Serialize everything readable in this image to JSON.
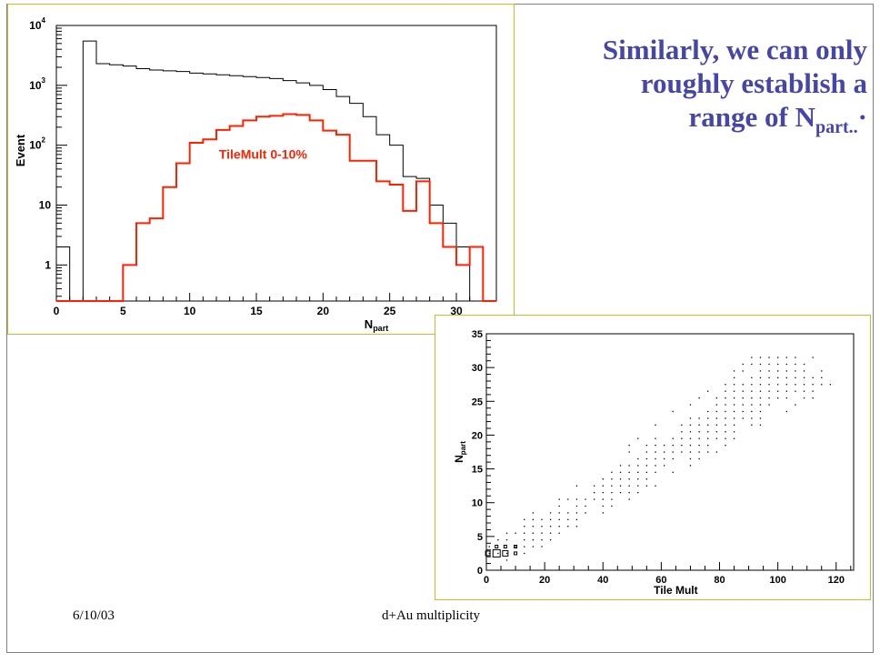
{
  "slide": {
    "headline_parts": [
      "Similarly, we can only",
      "roughly establish a",
      "range of N",
      "part..",
      "·"
    ],
    "footer_date": "6/10/03",
    "footer_title": "d+Au multiplicity"
  },
  "chart_data": [
    {
      "type": "histogram",
      "xlabel": "N",
      "xlabel_sub": "part",
      "ylabel": "Event",
      "xlim": [
        0,
        33
      ],
      "ylim": [
        0.25,
        10000
      ],
      "yscale": "log",
      "x_ticks": [
        0,
        5,
        10,
        15,
        20,
        25,
        30
      ],
      "y_ticks": [
        {
          "value": 1,
          "base": "1",
          "exp": ""
        },
        {
          "value": 10,
          "base": "10",
          "exp": ""
        },
        {
          "value": 100,
          "base": "10",
          "exp": "2"
        },
        {
          "value": 1000,
          "base": "10",
          "exp": "3"
        },
        {
          "value": 10000,
          "base": "10",
          "exp": "4"
        }
      ],
      "bin_width": 1,
      "series": [
        {
          "color": "#000000",
          "x_start": 0,
          "values": [
            2,
            0,
            5500,
            2300,
            2200,
            2100,
            1900,
            1800,
            1750,
            1700,
            1600,
            1550,
            1500,
            1450,
            1400,
            1350,
            1300,
            1200,
            1100,
            1000,
            850,
            650,
            500,
            300,
            150,
            100,
            30,
            28,
            10,
            5,
            2,
            0,
            0
          ]
        },
        {
          "color": "#ff2200",
          "x_start": 0,
          "values": [
            0,
            0,
            0,
            0,
            0,
            1,
            5,
            6,
            20,
            50,
            110,
            125,
            180,
            210,
            260,
            300,
            310,
            330,
            320,
            260,
            175,
            150,
            55,
            55,
            25,
            22,
            8,
            25,
            5,
            2,
            1,
            2,
            0
          ]
        }
      ],
      "annotation": {
        "text": "TileMult 0-10%",
        "color": "#ff2200",
        "x": 15.5,
        "y": 60
      }
    },
    {
      "type": "scatter",
      "xlabel": "Tile Mult",
      "ylabel": "N",
      "ylabel_sub": "part",
      "xlim": [
        0,
        126
      ],
      "ylim": [
        0,
        35
      ],
      "x_ticks": [
        0,
        20,
        40,
        60,
        80,
        100,
        120
      ],
      "y_ticks": [
        0,
        5,
        10,
        15,
        20,
        25,
        30,
        35
      ],
      "boxes": [
        {
          "x": 0.5,
          "y": 2.5,
          "size": 5
        },
        {
          "x": 3.5,
          "y": 2.5,
          "size": 8
        },
        {
          "x": 6.5,
          "y": 2.5,
          "size": 6
        },
        {
          "x": 10.0,
          "y": 2.5,
          "size": 3
        },
        {
          "x": 3.5,
          "y": 3.5,
          "size": 3
        },
        {
          "x": 6.5,
          "y": 3.5,
          "size": 3
        },
        {
          "x": 10.0,
          "y": 3.5,
          "size": 3
        }
      ]
    }
  ]
}
